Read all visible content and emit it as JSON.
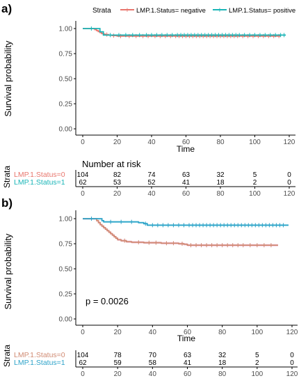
{
  "colors": {
    "negative": "#e8766d",
    "positive": "#19b5b7",
    "negative_b": "#d08a72",
    "positive_b": "#2ea3c9",
    "band_negative": "#f4c3df",
    "band_positive": "#bfeeee",
    "axis": "#000000",
    "tick_label": "#4d4d4d"
  },
  "chart_data": [
    {
      "panel_label": "a)",
      "type": "line",
      "legend": {
        "title": "Strata",
        "placement": "top",
        "entries": [
          "LMP.1.Status= negative",
          "LMP.1.Status= positive"
        ]
      },
      "ylabel": "Survival probability",
      "xlabel": "Time",
      "ylim": [
        0,
        1
      ],
      "xlim": [
        0,
        120
      ],
      "yticks": [
        "0.00",
        "0.25",
        "0.50",
        "0.75",
        "1.00"
      ],
      "xticks": [
        "0",
        "20",
        "40",
        "60",
        "80",
        "100",
        "120"
      ],
      "grid": false,
      "series": [
        {
          "name": "LMP.1.Status= negative",
          "x": [
            0,
            5,
            7,
            8,
            9,
            10,
            11,
            12,
            13,
            15,
            17,
            20,
            115
          ],
          "y": [
            1.0,
            1.0,
            0.99,
            0.98,
            0.97,
            0.96,
            0.95,
            0.945,
            0.94,
            0.935,
            0.93,
            0.925,
            0.925
          ],
          "censor_x": [
            14,
            18,
            22,
            27,
            31,
            35,
            38,
            42,
            45,
            48,
            51,
            54,
            56,
            58,
            60,
            62,
            64,
            66,
            68,
            70,
            72,
            74,
            76,
            78,
            80,
            82,
            84,
            86,
            88,
            90,
            93,
            96,
            99,
            102,
            105,
            108,
            111,
            114
          ]
        },
        {
          "name": "LMP.1.Status= positive",
          "x": [
            0,
            9,
            10,
            12,
            118
          ],
          "y": [
            1.0,
            1.0,
            0.968,
            0.935,
            0.935
          ],
          "censor_x": [
            5,
            16,
            21,
            25,
            29,
            33,
            37,
            40,
            43,
            46,
            49,
            52,
            55,
            57,
            59,
            61,
            63,
            65,
            67,
            69,
            71,
            73,
            75,
            77,
            79,
            81,
            83,
            85,
            87,
            89,
            91,
            94,
            97,
            100,
            103,
            106,
            109,
            112,
            115,
            117
          ]
        }
      ],
      "risk_table": {
        "title": "Number at risk",
        "ylabel": "Strata",
        "times": [
          0,
          20,
          40,
          60,
          80,
          100,
          120
        ],
        "rows": [
          {
            "label": "LMP.1.Status=0",
            "values": [
              "104",
              "82",
              "74",
              "63",
              "32",
              "5",
              "0"
            ]
          },
          {
            "label": "LMP.1.Status=1",
            "values": [
              "62",
              "53",
              "52",
              "41",
              "18",
              "2",
              "0"
            ]
          }
        ],
        "xticks": [
          "0",
          "20",
          "40",
          "60",
          "80",
          "100",
          "120"
        ]
      }
    },
    {
      "panel_label": "b)",
      "type": "line",
      "ylabel": "Survival probability",
      "xlabel": "Time",
      "ylim": [
        0,
        1
      ],
      "xlim": [
        0,
        120
      ],
      "yticks": [
        "0.00",
        "0.25",
        "0.50",
        "0.75",
        "1.00"
      ],
      "xticks": [
        "0",
        "20",
        "40",
        "60",
        "80",
        "100",
        "120"
      ],
      "grid": false,
      "annotation": "p = 0.0026",
      "series": [
        {
          "name": "LMP.1.Status=0",
          "x": [
            0,
            7,
            8,
            9,
            10,
            11,
            12,
            13,
            14,
            15,
            16,
            17,
            18,
            19,
            20,
            22,
            25,
            28,
            35,
            45,
            55,
            58,
            60,
            112
          ],
          "y": [
            1.0,
            1.0,
            0.98,
            0.96,
            0.94,
            0.925,
            0.91,
            0.895,
            0.88,
            0.865,
            0.85,
            0.835,
            0.82,
            0.805,
            0.79,
            0.78,
            0.77,
            0.765,
            0.76,
            0.755,
            0.75,
            0.745,
            0.735,
            0.735
          ],
          "censor_x": [
            24,
            32,
            38,
            42,
            48,
            52,
            57,
            62,
            65,
            68,
            71,
            74,
            77,
            80,
            83,
            86,
            89,
            92,
            96,
            100,
            104,
            108
          ]
        },
        {
          "name": "LMP.1.Status=1",
          "x": [
            0,
            10,
            11,
            12,
            30,
            32,
            35,
            37,
            118
          ],
          "y": [
            1.0,
            1.0,
            0.98,
            0.968,
            0.968,
            0.96,
            0.95,
            0.935,
            0.935
          ],
          "censor_x": [
            5,
            16,
            22,
            28,
            36,
            40,
            43,
            46,
            49,
            52,
            55,
            58,
            61,
            63,
            65,
            67,
            69,
            71,
            73,
            75,
            77,
            79,
            81,
            83,
            85,
            87,
            89,
            91,
            93,
            95,
            97,
            99,
            101,
            103,
            105,
            107,
            109,
            111,
            113,
            115
          ]
        }
      ],
      "risk_table": {
        "ylabel": "Strata",
        "times": [
          0,
          20,
          40,
          60,
          80,
          100,
          120
        ],
        "rows": [
          {
            "label": "LMP.1.Status=0",
            "values": [
              "104",
              "78",
              "70",
              "63",
              "32",
              "5",
              "0"
            ]
          },
          {
            "label": "LMP.1.Status=1",
            "values": [
              "62",
              "59",
              "58",
              "41",
              "18",
              "2",
              "0"
            ]
          }
        ],
        "xticks": [
          "0",
          "20",
          "40",
          "60",
          "80",
          "100",
          "120"
        ]
      }
    }
  ]
}
